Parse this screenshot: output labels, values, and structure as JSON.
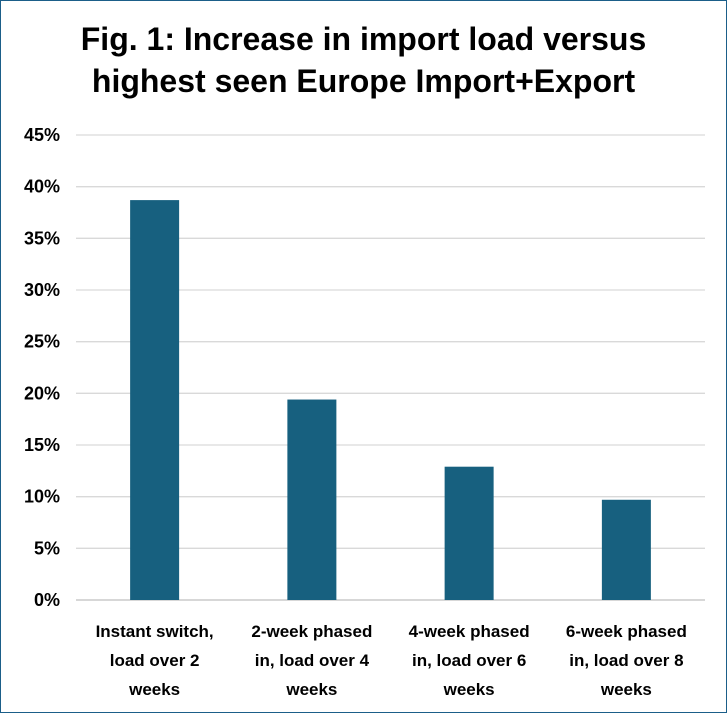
{
  "chart_data": {
    "type": "bar",
    "title_lines": [
      "Fig. 1: Increase in import load versus",
      "highest seen Europe Import+Export"
    ],
    "title": "Fig. 1: Increase in import load versus highest seen Europe Import+Export",
    "categories": [
      [
        "Instant switch,",
        "load over 2",
        "weeks"
      ],
      [
        "2-week phased",
        "in, load over 4",
        "weeks"
      ],
      [
        "4-week phased",
        "in, load over 6",
        "weeks"
      ],
      [
        "6-week phased",
        "in, load over 8",
        "weeks"
      ]
    ],
    "values": [
      38.7,
      19.4,
      12.9,
      9.7
    ],
    "y_ticks": [
      "0%",
      "5%",
      "10%",
      "15%",
      "20%",
      "25%",
      "30%",
      "35%",
      "40%",
      "45%"
    ],
    "ylim": [
      0,
      45
    ],
    "y_step": 5,
    "bar_color": "#17607f",
    "grid": true,
    "xlabel": "",
    "ylabel": ""
  }
}
